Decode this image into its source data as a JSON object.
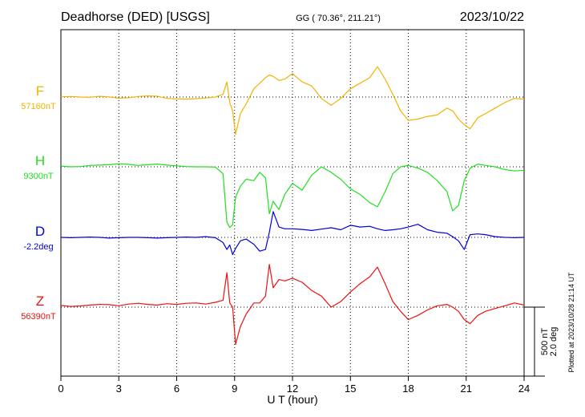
{
  "chart_data": {
    "type": "line",
    "title": "Deadhorse (DED)  [USGS]",
    "coords": "GG ( 70.36°, 211.21°)",
    "date": "2023/10/22",
    "xlabel": "U T (hour)",
    "xlim": [
      0,
      24
    ],
    "xticks": [
      0,
      3,
      6,
      9,
      12,
      15,
      18,
      21,
      24
    ],
    "scale_label": "500 nT",
    "scale_label_deg": "2.0 deg",
    "scale_nT": 500,
    "plotted_note": "Plotted at 2023/10/28 21:14 UT",
    "series": [
      {
        "name": "F",
        "baseline_label": "57160nT",
        "color": "#f0b400",
        "baseline_value": 57160,
        "units": "nT",
        "x": [
          0,
          0.5,
          1,
          1.5,
          2,
          2.5,
          3,
          3.5,
          4,
          4.5,
          5,
          5.5,
          6,
          6.5,
          7,
          7.5,
          8,
          8.4,
          8.6,
          8.75,
          8.9,
          9.05,
          9.3,
          9.6,
          10,
          10.3,
          10.6,
          10.8,
          11,
          11.3,
          11.6,
          12,
          12.5,
          13,
          13.5,
          14,
          14.5,
          15,
          15.5,
          16,
          16.4,
          16.8,
          17.2,
          17.6,
          18,
          18.5,
          19,
          19.5,
          20,
          20.3,
          20.6,
          20.9,
          21.2,
          21.6,
          22,
          22.5,
          23,
          23.5,
          24
        ],
        "y": [
          57162,
          57164,
          57160,
          57158,
          57165,
          57161,
          57152,
          57155,
          57164,
          57168,
          57166,
          57150,
          57146,
          57145,
          57148,
          57153,
          57160,
          57180,
          57270,
          57120,
          57060,
          56890,
          57040,
          57110,
          57220,
          57260,
          57300,
          57320,
          57310,
          57280,
          57290,
          57330,
          57270,
          57240,
          57150,
          57100,
          57150,
          57220,
          57260,
          57300,
          57380,
          57290,
          57180,
          57060,
          56990,
          57000,
          57020,
          57030,
          57080,
          57060,
          57000,
          56960,
          56930,
          57010,
          57040,
          57080,
          57120,
          57150,
          57145
        ]
      },
      {
        "name": "H",
        "baseline_label": "9300nT",
        "color": "#22dd22",
        "baseline_value": 9300,
        "units": "nT",
        "x": [
          0,
          0.5,
          1,
          1.5,
          2,
          2.5,
          3,
          3.5,
          4,
          4.5,
          5,
          5.5,
          6,
          6.5,
          7,
          7.5,
          8,
          8.4,
          8.6,
          8.75,
          8.9,
          9.05,
          9.3,
          9.6,
          10,
          10.3,
          10.6,
          10.8,
          11,
          11.3,
          11.6,
          12,
          12.5,
          13,
          13.5,
          14,
          14.5,
          15,
          15.5,
          16,
          16.4,
          16.8,
          17.2,
          17.6,
          18,
          18.5,
          19,
          19.5,
          20,
          20.3,
          20.6,
          20.9,
          21.2,
          21.6,
          22,
          22.5,
          23,
          23.5,
          24
        ],
        "y": [
          9305,
          9300,
          9302,
          9310,
          9312,
          9315,
          9322,
          9318,
          9310,
          9315,
          9320,
          9312,
          9307,
          9302,
          9300,
          9300,
          9298,
          9250,
          8900,
          8860,
          8880,
          9080,
          9160,
          9210,
          9200,
          9260,
          9220,
          8960,
          9050,
          8990,
          9100,
          9180,
          9130,
          9240,
          9300,
          9260,
          9210,
          9140,
          9100,
          9040,
          9010,
          9120,
          9250,
          9300,
          9310,
          9290,
          9260,
          9200,
          9120,
          8980,
          9020,
          9200,
          9290,
          9320,
          9310,
          9300,
          9280,
          9270,
          9275
        ]
      },
      {
        "name": "D",
        "baseline_label": "-2.2deg",
        "color": "#0000dd",
        "baseline_value": -2.2,
        "units": "deg",
        "x": [
          0,
          0.5,
          1,
          1.5,
          2,
          2.5,
          3,
          3.5,
          4,
          4.5,
          5,
          5.5,
          6,
          6.5,
          7,
          7.5,
          8,
          8.4,
          8.6,
          8.75,
          8.9,
          9.05,
          9.3,
          9.6,
          10,
          10.3,
          10.6,
          10.8,
          11,
          11.3,
          11.6,
          12,
          12.5,
          13,
          13.5,
          14,
          14.5,
          15,
          15.5,
          16,
          16.4,
          16.8,
          17.2,
          17.6,
          18,
          18.5,
          19,
          19.5,
          20,
          20.3,
          20.6,
          20.9,
          21.2,
          21.6,
          22,
          22.5,
          23,
          23.5,
          24
        ],
        "y": [
          -2.2,
          -2.21,
          -2.2,
          -2.19,
          -2.2,
          -2.22,
          -2.21,
          -2.2,
          -2.2,
          -2.21,
          -2.22,
          -2.21,
          -2.2,
          -2.19,
          -2.2,
          -2.18,
          -2.21,
          -2.35,
          -2.55,
          -2.42,
          -2.7,
          -2.52,
          -2.3,
          -2.25,
          -2.4,
          -2.6,
          -2.55,
          -2.05,
          -1.45,
          -1.9,
          -1.95,
          -1.95,
          -1.97,
          -2.0,
          -1.96,
          -1.92,
          -1.98,
          -1.85,
          -1.9,
          -1.88,
          -1.95,
          -2.0,
          -1.98,
          -1.95,
          -1.9,
          -1.82,
          -1.98,
          -2.05,
          -2.08,
          -2.18,
          -2.3,
          -2.55,
          -2.12,
          -2.1,
          -2.12,
          -2.18,
          -2.2,
          -2.21,
          -2.2
        ]
      },
      {
        "name": "Z",
        "baseline_label": "56390nT",
        "color": "#ee1111",
        "baseline_value": 56390,
        "units": "nT",
        "x": [
          0,
          0.5,
          1,
          1.5,
          2,
          2.5,
          3,
          3.5,
          4,
          4.5,
          5,
          5.5,
          6,
          6.5,
          7,
          7.5,
          8,
          8.4,
          8.6,
          8.75,
          8.9,
          9.05,
          9.3,
          9.6,
          10,
          10.3,
          10.6,
          10.8,
          11,
          11.3,
          11.6,
          12,
          12.5,
          13,
          13.5,
          14,
          14.5,
          15,
          15.5,
          16,
          16.4,
          16.8,
          17.2,
          17.6,
          18,
          18.5,
          19,
          19.5,
          20,
          20.3,
          20.6,
          20.9,
          21.2,
          21.6,
          22,
          22.5,
          23,
          23.5,
          24
        ],
        "y": [
          56402,
          56395,
          56398,
          56405,
          56410,
          56408,
          56400,
          56412,
          56418,
          56410,
          56405,
          56415,
          56410,
          56418,
          56420,
          56412,
          56425,
          56440,
          56640,
          56420,
          56390,
          56120,
          56250,
          56340,
          56420,
          56420,
          56470,
          56700,
          56530,
          56590,
          56580,
          56600,
          56570,
          56510,
          56470,
          56390,
          56430,
          56500,
          56560,
          56610,
          56680,
          56560,
          56430,
          56360,
          56300,
          56330,
          56370,
          56400,
          56410,
          56390,
          56360,
          56300,
          56270,
          56330,
          56360,
          56380,
          56400,
          56420,
          56405
        ]
      }
    ]
  }
}
